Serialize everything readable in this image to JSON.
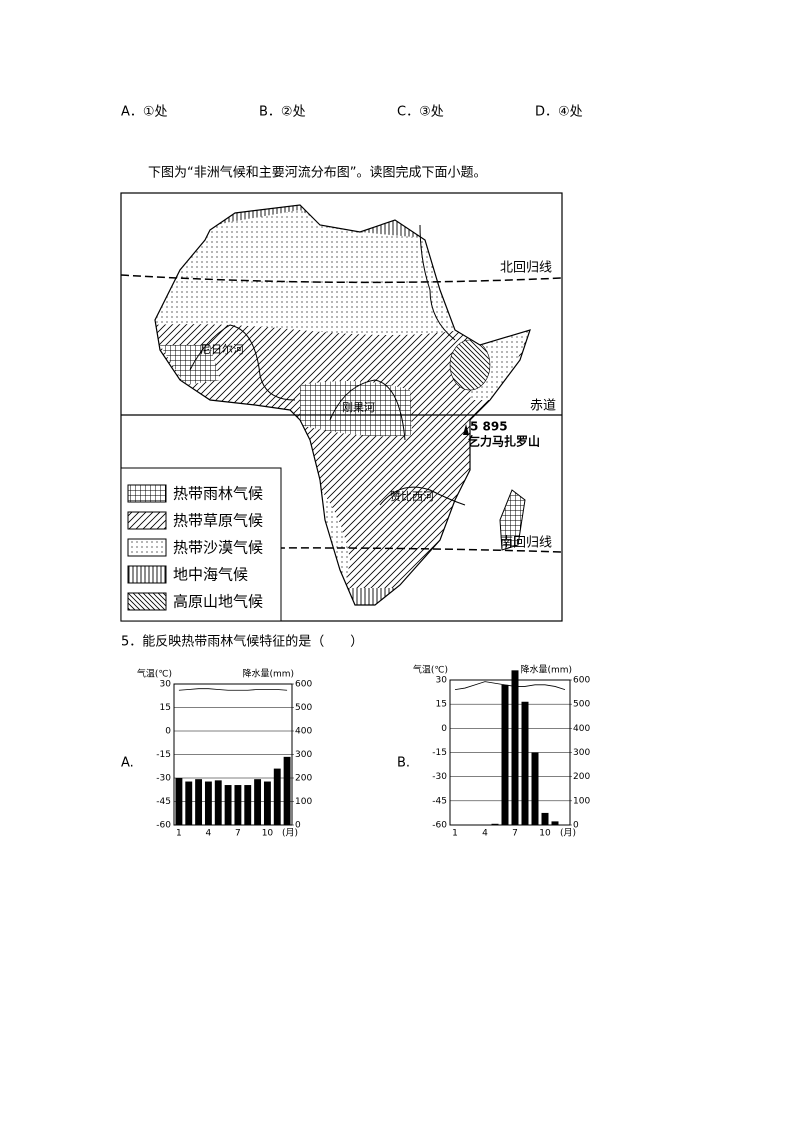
{
  "options": [
    "A．①处",
    "B．②处",
    "C．③处",
    "D．④处"
  ],
  "intro": "下图为“非洲气候和主要河流分布图”。读图完成下面小题。",
  "map": {
    "lines": [
      "北回归线",
      "赤道",
      "南回归线"
    ],
    "rivers": [
      "尼日尔河",
      "刚果河",
      "赞比西河"
    ],
    "peak_height": "5 895",
    "peak_name": "乞力马扎罗山",
    "legend": [
      "热带雨林气候",
      "热带草原气候",
      "热带沙漠气候",
      "地中海气候",
      "高原山地气候"
    ]
  },
  "question": "5．能反映热带雨林气候特征的是（　　）",
  "chart_labels": [
    "A.",
    "B."
  ],
  "chart_data": [
    {
      "type": "bar",
      "categories": [
        "1",
        null,
        null,
        "4",
        null,
        null,
        "7",
        null,
        null,
        "10",
        null,
        null
      ],
      "x_unit": "(月)",
      "y_label": "气温(℃)",
      "y2_label": "降水量(mm)",
      "ylim": [
        -60,
        30
      ],
      "yticks": [
        30,
        15,
        0,
        -15,
        -30,
        -45,
        -60
      ],
      "y2lim": [
        0,
        600
      ],
      "y2ticks": [
        600,
        500,
        400,
        300,
        200,
        100,
        0
      ],
      "grid": true,
      "series": [
        {
          "type": "line",
          "color": "#000000",
          "values": [
            26,
            26.5,
            27,
            27,
            26.5,
            26,
            26,
            26,
            26.5,
            26.5,
            26.5,
            26
          ]
        },
        {
          "type": "bar",
          "axis": "y2",
          "color": "#000000",
          "values": [
            200,
            185,
            195,
            185,
            190,
            170,
            170,
            170,
            195,
            185,
            240,
            290
          ]
        }
      ]
    },
    {
      "type": "bar",
      "categories": [
        "1",
        null,
        null,
        "4",
        null,
        null,
        "7",
        null,
        null,
        "10",
        null,
        null
      ],
      "x_unit": "(月)",
      "y_label": "气温(℃)",
      "y2_label": "降水量(mm)",
      "ylim": [
        -60,
        30
      ],
      "yticks": [
        30,
        15,
        0,
        -15,
        -30,
        -45,
        -60
      ],
      "y2lim": [
        0,
        600
      ],
      "y2ticks": [
        600,
        500,
        400,
        300,
        200,
        100,
        0
      ],
      "grid": true,
      "series": [
        {
          "type": "line",
          "color": "#000000",
          "values": [
            24,
            25,
            27,
            29,
            28,
            27,
            26,
            26,
            27,
            27,
            26,
            24
          ]
        },
        {
          "type": "bar",
          "axis": "y2",
          "color": "#000000",
          "values": [
            1,
            1,
            1,
            2,
            5,
            580,
            640,
            510,
            300,
            50,
            15,
            1
          ]
        }
      ]
    }
  ]
}
